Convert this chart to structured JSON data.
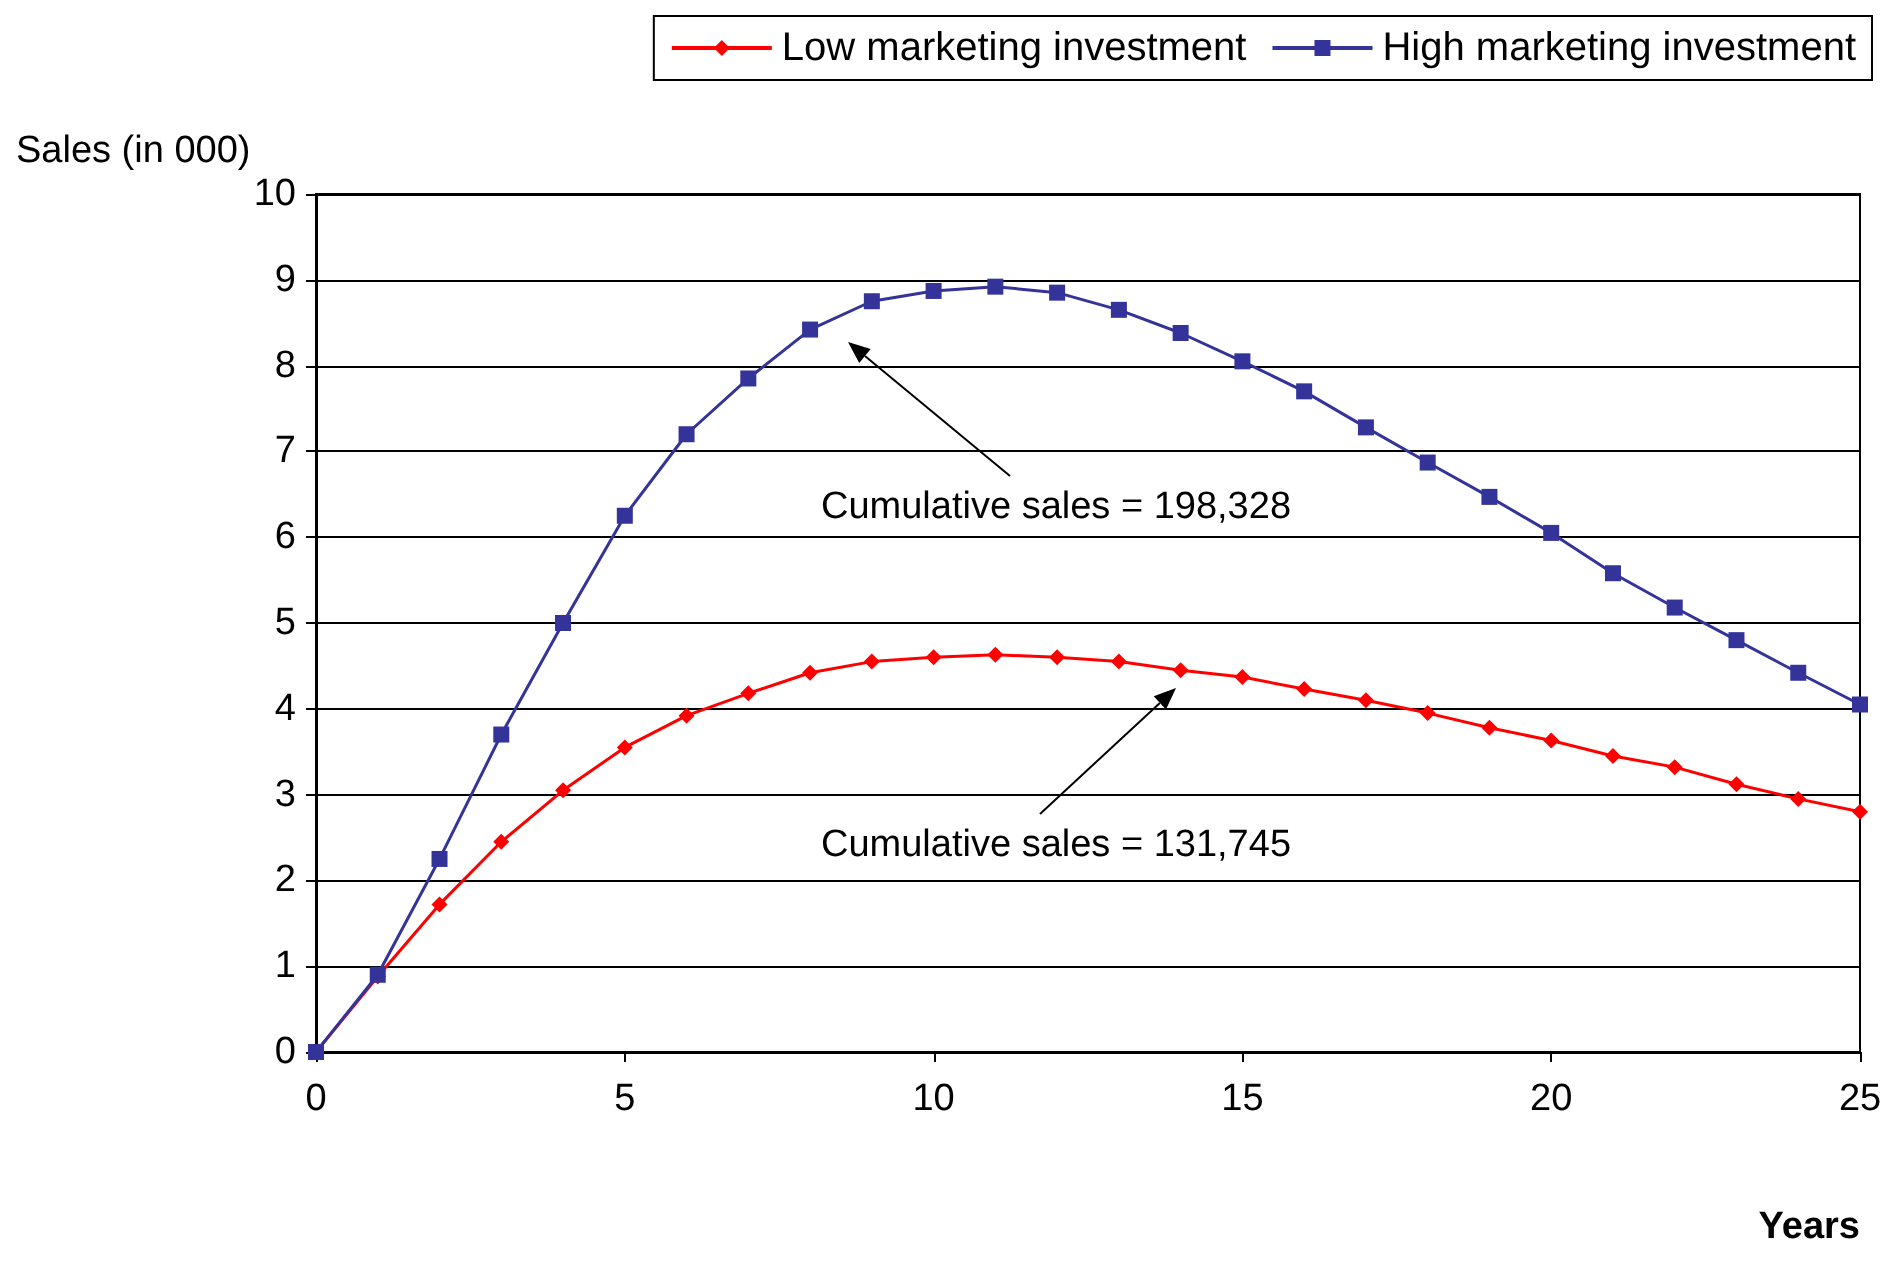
{
  "chart_data": {
    "type": "line",
    "xlabel": "Years",
    "ylabel": "Sales (in 000)",
    "x": [
      0,
      1,
      2,
      3,
      4,
      5,
      6,
      7,
      8,
      9,
      10,
      11,
      12,
      13,
      14,
      15,
      16,
      17,
      18,
      19,
      20,
      21,
      22,
      23,
      24,
      25
    ],
    "series": [
      {
        "name": "Low marketing investment",
        "color": "#ff0000",
        "marker": "diamond",
        "values": [
          0,
          0.88,
          1.72,
          2.45,
          3.05,
          3.55,
          3.92,
          4.18,
          4.42,
          4.55,
          4.6,
          4.63,
          4.6,
          4.55,
          4.45,
          4.37,
          4.23,
          4.1,
          3.95,
          3.78,
          3.63,
          3.45,
          3.32,
          3.12,
          2.95,
          2.8
        ]
      },
      {
        "name": "High marketing investment",
        "color": "#333399",
        "marker": "square",
        "values": [
          0,
          0.9,
          2.25,
          3.7,
          5.0,
          6.25,
          7.2,
          7.85,
          8.42,
          8.75,
          8.87,
          8.92,
          8.85,
          8.65,
          8.38,
          8.05,
          7.7,
          7.28,
          6.87,
          6.47,
          6.05,
          5.58,
          5.18,
          4.8,
          4.42,
          4.05
        ]
      }
    ],
    "xlim": [
      0,
      25
    ],
    "xticks": [
      0,
      5,
      10,
      15,
      20,
      25
    ],
    "ylim": [
      0,
      10
    ],
    "yticks": [
      0,
      1,
      2,
      3,
      4,
      5,
      6,
      7,
      8,
      9,
      10
    ],
    "grid": "y",
    "legend": "top right",
    "line_style": "solid",
    "annotations": [
      "Cumulative sales = 198,328",
      "Cumulative sales = 131,745"
    ]
  }
}
